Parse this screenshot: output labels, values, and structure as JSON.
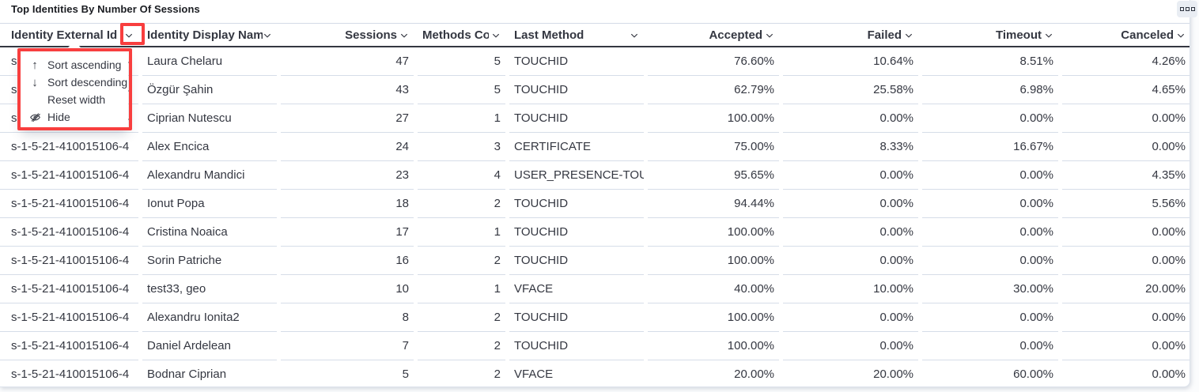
{
  "panel": {
    "title": "Top Identities By Number Of Sessions"
  },
  "table": {
    "columns": [
      {
        "label": "Identity External Id",
        "align": "left"
      },
      {
        "label": "Identity Display Name",
        "align": "left"
      },
      {
        "label": "Sessions",
        "align": "right"
      },
      {
        "label": "Methods Count",
        "align": "right"
      },
      {
        "label": "Last Method",
        "align": "left"
      },
      {
        "label": "Accepted",
        "align": "right"
      },
      {
        "label": "Failed",
        "align": "right"
      },
      {
        "label": "Timeout",
        "align": "right"
      },
      {
        "label": "Canceled",
        "align": "right"
      }
    ],
    "rows": [
      [
        "s-1-5-21-410015106-4",
        "Laura Chelaru",
        "47",
        "5",
        "TOUCHID",
        "76.60%",
        "10.64%",
        "8.51%",
        "4.26%"
      ],
      [
        "s-1-5-21-410015106-4",
        "Özgür Şahin",
        "43",
        "5",
        "TOUCHID",
        "62.79%",
        "25.58%",
        "6.98%",
        "4.65%"
      ],
      [
        "s-1-5-21-410015106-4",
        "Ciprian Nutescu",
        "27",
        "1",
        "TOUCHID",
        "100.00%",
        "0.00%",
        "0.00%",
        "0.00%"
      ],
      [
        "s-1-5-21-410015106-4",
        "Alex Encica",
        "24",
        "3",
        "CERTIFICATE",
        "75.00%",
        "8.33%",
        "16.67%",
        "0.00%"
      ],
      [
        "s-1-5-21-410015106-4",
        "Alexandru Mandici",
        "23",
        "4",
        "USER_PRESENCE-TOUC",
        "95.65%",
        "0.00%",
        "0.00%",
        "4.35%"
      ],
      [
        "s-1-5-21-410015106-4",
        "Ionut Popa",
        "18",
        "2",
        "TOUCHID",
        "94.44%",
        "0.00%",
        "0.00%",
        "5.56%"
      ],
      [
        "s-1-5-21-410015106-4",
        "Cristina Noaica",
        "17",
        "1",
        "TOUCHID",
        "100.00%",
        "0.00%",
        "0.00%",
        "0.00%"
      ],
      [
        "s-1-5-21-410015106-4",
        "Sorin Patriche",
        "16",
        "2",
        "TOUCHID",
        "100.00%",
        "0.00%",
        "0.00%",
        "0.00%"
      ],
      [
        "s-1-5-21-410015106-4",
        "test33, geo",
        "10",
        "1",
        "VFACE",
        "40.00%",
        "10.00%",
        "30.00%",
        "20.00%"
      ],
      [
        "s-1-5-21-410015106-4",
        "Alexandru Ionita2",
        "8",
        "2",
        "TOUCHID",
        "100.00%",
        "0.00%",
        "0.00%",
        "0.00%"
      ],
      [
        "s-1-5-21-410015106-4",
        "Daniel Ardelean",
        "7",
        "2",
        "TOUCHID",
        "100.00%",
        "0.00%",
        "0.00%",
        "0.00%"
      ],
      [
        "s-1-5-21-410015106-4",
        "Bodnar Ciprian",
        "5",
        "2",
        "VFACE",
        "20.00%",
        "20.00%",
        "60.00%",
        "0.00%"
      ]
    ]
  },
  "column_menu": {
    "items": [
      {
        "icon": "arrow-up",
        "label": "Sort ascending"
      },
      {
        "icon": "arrow-down",
        "label": "Sort descending"
      },
      {
        "icon": "",
        "label": "Reset width"
      },
      {
        "icon": "eye-closed",
        "label": "Hide"
      }
    ]
  },
  "colors": {
    "annotation_red": "#f83e3e",
    "header_text": "#1a1c21",
    "body_text": "#343741",
    "row_separator": "#d6dde8",
    "header_border": "#343741"
  }
}
